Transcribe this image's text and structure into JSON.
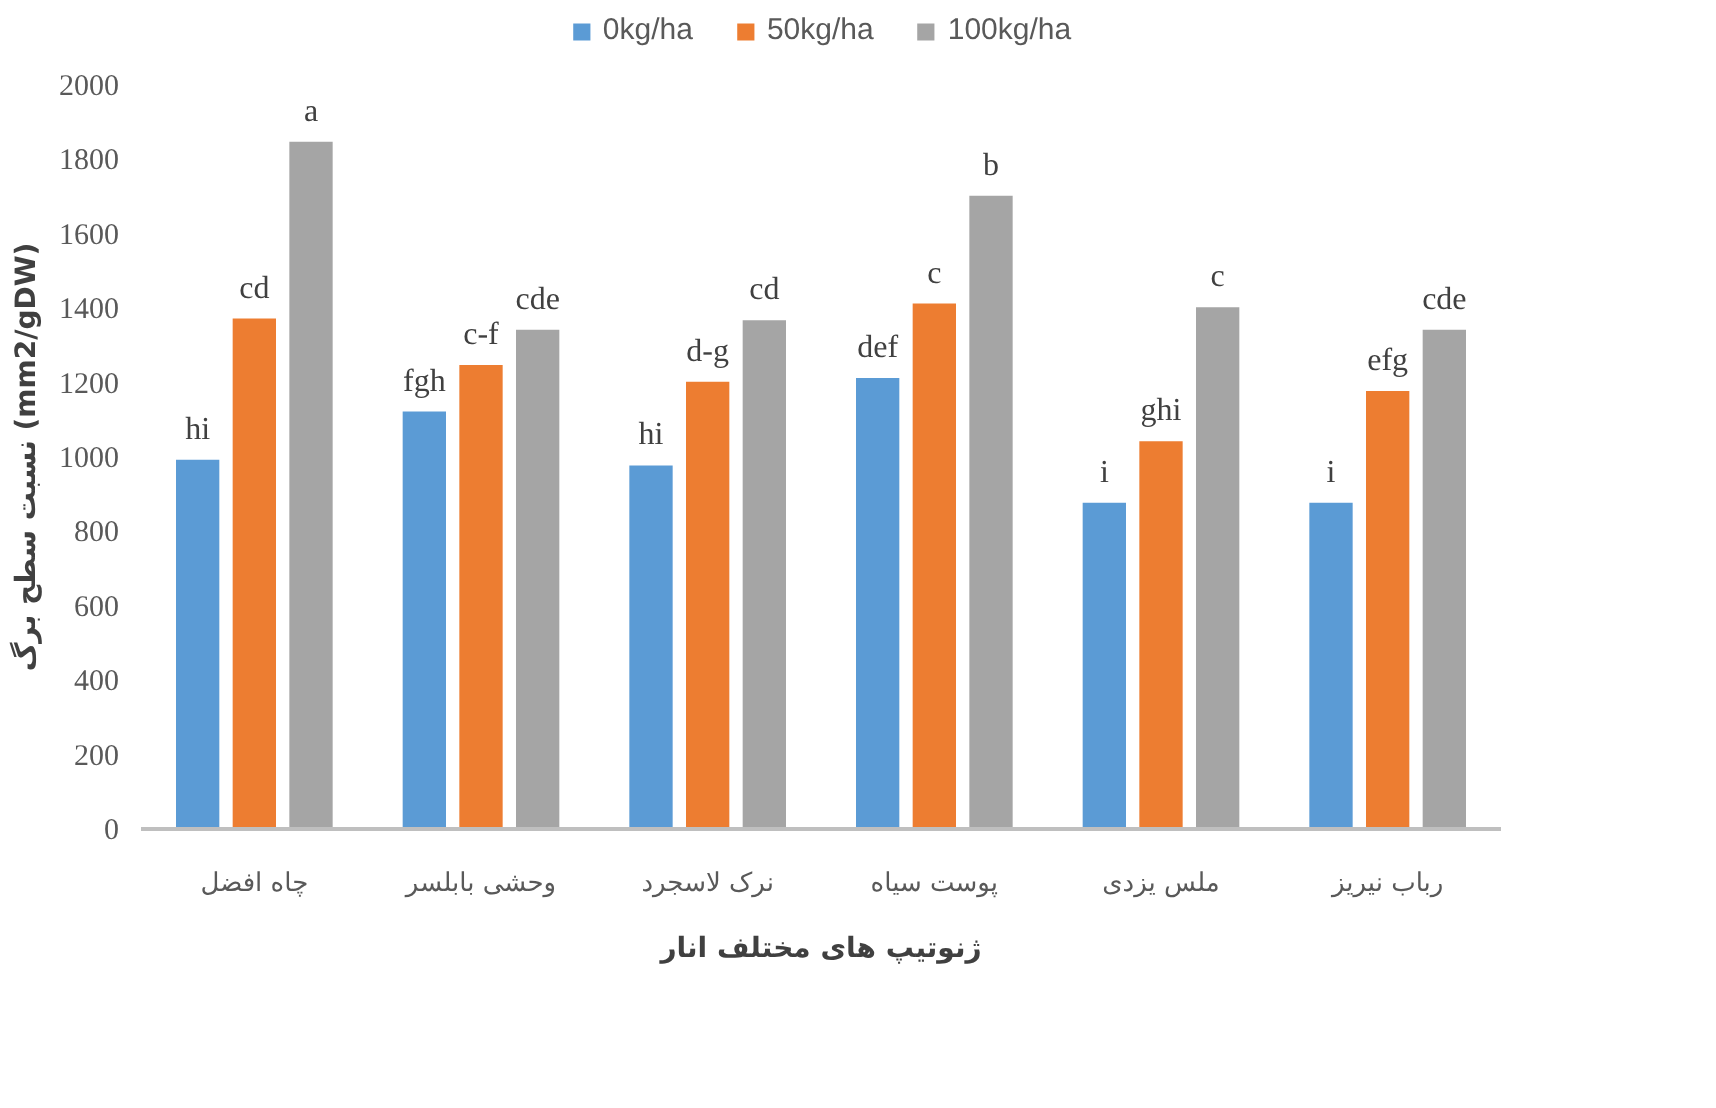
{
  "chart_data": {
    "type": "bar",
    "categories": [
      "چاه افضل",
      "وحشی بابلسر",
      "نرک لاسجرد",
      "پوست سیاه",
      "ملس یزدی",
      "رباب نیریز"
    ],
    "series": [
      {
        "name": "0kg/ha",
        "color": "#5b9bd5",
        "values": [
          995,
          1125,
          980,
          1215,
          880,
          880
        ],
        "value_labels": [
          "hi",
          "fgh",
          "hi",
          "def",
          "i",
          "i"
        ]
      },
      {
        "name": "50kg/ha",
        "color": "#ed7d31",
        "values": [
          1375,
          1250,
          1205,
          1415,
          1045,
          1180
        ],
        "value_labels": [
          "cd",
          "c-f",
          "d-g",
          "c",
          "ghi",
          "efg"
        ]
      },
      {
        "name": "100kg/ha",
        "color": "#a5a5a5",
        "values": [
          1850,
          1345,
          1370,
          1705,
          1405,
          1345
        ],
        "value_labels": [
          "a",
          "cde",
          "cd",
          "b",
          "c",
          "cde"
        ]
      }
    ],
    "xlabel": "ژنوتیپ های مختلف انار",
    "ylabel": "نسبت سطح برگ (mm2/gDW)",
    "ylim": [
      0,
      2000
    ],
    "yticks": [
      0,
      200,
      400,
      600,
      800,
      1000,
      1200,
      1400,
      1600,
      1800,
      2000
    ],
    "grid": false,
    "legend": "top"
  }
}
